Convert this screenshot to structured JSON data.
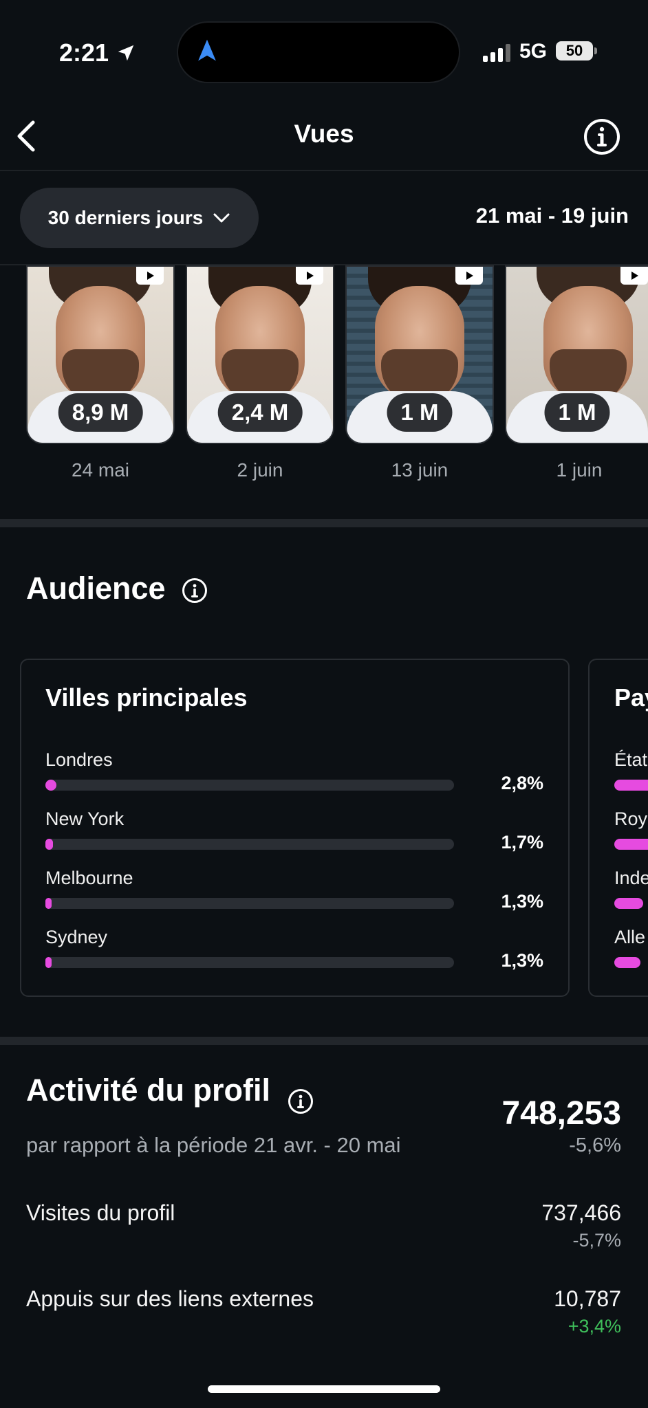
{
  "status": {
    "time": "2:21",
    "network": "5G",
    "battery": "50",
    "location_icon": "location-arrow-icon",
    "island_icon": "navigation-arrow-icon"
  },
  "header": {
    "title": "Vues",
    "back_icon": "chevron-left-icon",
    "info_icon": "info-icon"
  },
  "filter": {
    "period_label": "30 derniers jours",
    "date_range": "21 mai - 19 juin"
  },
  "reels": [
    {
      "views": "8,9 M",
      "date": "24 mai"
    },
    {
      "views": "2,4 M",
      "date": "2 juin"
    },
    {
      "views": "1 M",
      "date": "13 juin"
    },
    {
      "views": "1 M",
      "date": "1 juin"
    }
  ],
  "audience": {
    "title": "Audience",
    "top_cities": {
      "title": "Villes principales",
      "items": [
        {
          "name": "Londres",
          "pct": "2,8%",
          "value": 2.8
        },
        {
          "name": "New York",
          "pct": "1,7%",
          "value": 1.7
        },
        {
          "name": "Melbourne",
          "pct": "1,3%",
          "value": 1.3
        },
        {
          "name": "Sydney",
          "pct": "1,3%",
          "value": 1.3
        }
      ]
    },
    "top_countries": {
      "title": "Pay",
      "items": [
        {
          "name": "État"
        },
        {
          "name": "Roy"
        },
        {
          "name": "Inde"
        },
        {
          "name": "Alle"
        }
      ]
    }
  },
  "activity": {
    "title": "Activité du profil",
    "subtitle": "par rapport à la période 21 avr. - 20 mai",
    "total": "748,253",
    "total_delta": "-5,6%",
    "rows": [
      {
        "label": "Visites du profil",
        "value": "737,466",
        "delta": "-5,7%"
      },
      {
        "label": "Appuis sur des liens externes",
        "value": "10,787",
        "delta": "+3,4%"
      }
    ]
  },
  "colors": {
    "background": "#0c1014",
    "accent_bar": "#e64be0",
    "positive": "#3fbf5b",
    "muted_text": "#a8adb3"
  }
}
